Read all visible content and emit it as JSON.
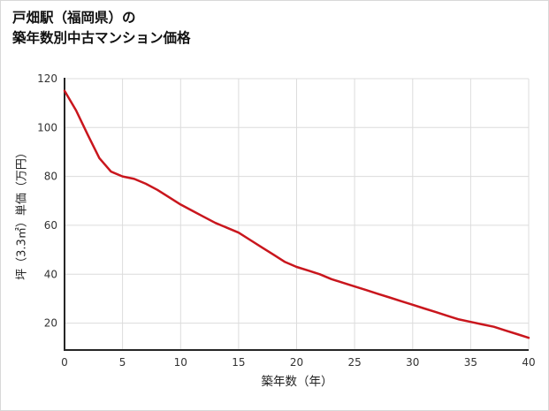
{
  "title": {
    "line1": "戸畑駅（福岡県）の",
    "line2": "築年数別中古マンション価格"
  },
  "chart_data": {
    "type": "line",
    "title": "戸畑駅（福岡県）の築年数別中古マンション価格",
    "xlabel": "築年数（年）",
    "ylabel": "坪（3.3㎡）単価（万円）",
    "x": [
      0,
      1,
      2,
      3,
      4,
      5,
      6,
      7,
      8,
      9,
      10,
      11,
      12,
      13,
      14,
      15,
      16,
      17,
      18,
      19,
      20,
      21,
      22,
      23,
      24,
      25,
      26,
      27,
      28,
      29,
      30,
      31,
      32,
      33,
      34,
      35,
      36,
      37,
      38,
      39,
      40
    ],
    "values": [
      115,
      107,
      97,
      87.5,
      82,
      80,
      79,
      77,
      74.5,
      71.5,
      68.5,
      66,
      63.5,
      61,
      59,
      57,
      54,
      51,
      48,
      45,
      43,
      41.5,
      40,
      38,
      36.5,
      35,
      33.5,
      32,
      30.5,
      29,
      27.5,
      26,
      24.5,
      23,
      21.5,
      20.5,
      19.5,
      18.5,
      17,
      15.5,
      14
    ],
    "xlim": [
      0,
      40
    ],
    "ylim": [
      9,
      120
    ],
    "xticks": [
      0,
      5,
      10,
      15,
      20,
      25,
      30,
      35,
      40
    ],
    "yticks": [
      20,
      40,
      60,
      80,
      100,
      120
    ],
    "grid": true,
    "legend": "none",
    "line_color": "#c9161d",
    "axis_color": "#262626",
    "grid_color": "#dcdcdc",
    "tick_label_color": "#333333"
  }
}
